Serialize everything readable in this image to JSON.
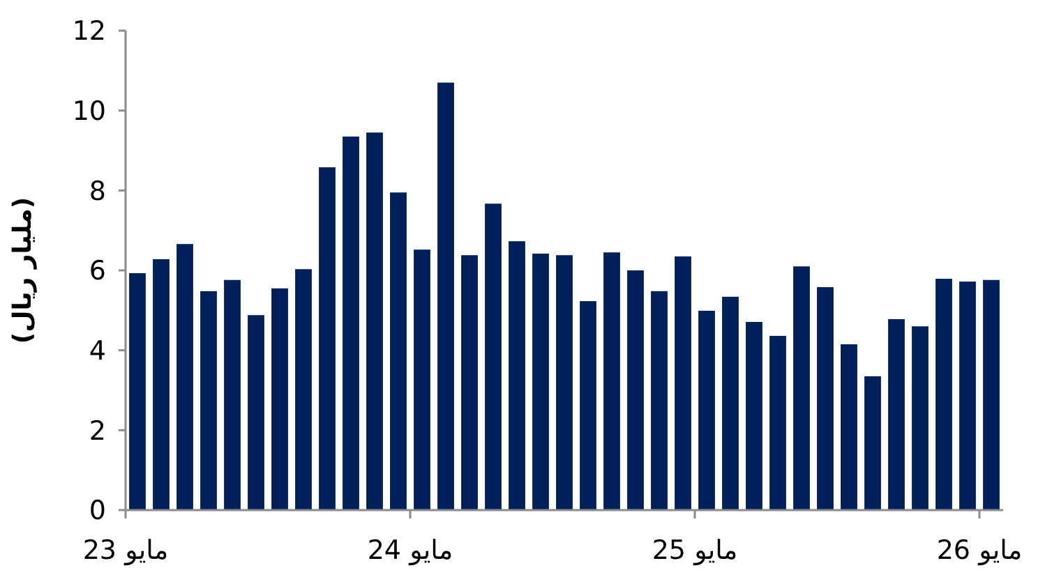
{
  "chart_data": {
    "type": "bar",
    "ylabel": "(مليار ريال)",
    "categories": [
      "مايو 23",
      null,
      null,
      null,
      null,
      null,
      null,
      null,
      null,
      null,
      null,
      null,
      "مايو 24",
      null,
      null,
      null,
      null,
      null,
      null,
      null,
      null,
      null,
      null,
      null,
      "مايو 25",
      null,
      null,
      null,
      null,
      null,
      null,
      null,
      null,
      null,
      null,
      null,
      "مايو 26"
    ],
    "values": [
      5.93,
      6.28,
      6.66,
      5.48,
      5.76,
      4.88,
      5.55,
      6.03,
      8.58,
      9.35,
      9.45,
      7.95,
      6.52,
      10.7,
      6.38,
      7.67,
      6.73,
      6.42,
      6.38,
      5.23,
      6.45,
      6.0,
      5.48,
      6.35,
      4.99,
      5.34,
      4.71,
      4.36,
      6.1,
      5.58,
      4.15,
      3.35,
      4.78,
      4.6,
      5.79,
      5.72,
      5.76
    ],
    "color": "#00205b",
    "ylim": [
      0,
      12
    ],
    "yticks": [
      0,
      2,
      4,
      6,
      8,
      10,
      12
    ],
    "grid": false
  }
}
